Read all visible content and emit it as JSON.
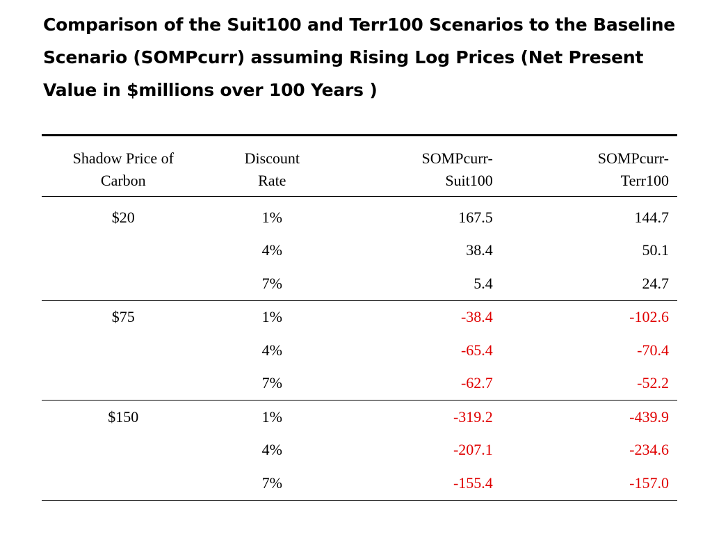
{
  "title": "Comparison of the Suit100 and Terr100 Scenarios to the Baseline Scenario (SOMPcurr) assuming Rising Log Prices (Net Present Value in $millions over 100 Years )",
  "colors": {
    "negative": "#e00000",
    "positive": "#000000"
  },
  "table": {
    "headers": {
      "price_line1": "Shadow Price of",
      "price_line2": "Carbon",
      "rate_line1": "Discount",
      "rate_line2": "Rate",
      "suit_line1": "SOMPcurr-",
      "suit_line2": "Suit100",
      "terr_line1": "SOMPcurr-",
      "terr_line2": "Terr100"
    },
    "groups": [
      {
        "price": "$20",
        "rows": [
          {
            "rate": "1%",
            "suit": "167.5",
            "terr": "144.7"
          },
          {
            "rate": "4%",
            "suit": "38.4",
            "terr": "50.1"
          },
          {
            "rate": "7%",
            "suit": "5.4",
            "terr": "24.7"
          }
        ]
      },
      {
        "price": "$75",
        "rows": [
          {
            "rate": "1%",
            "suit": "-38.4",
            "terr": "-102.6"
          },
          {
            "rate": "4%",
            "suit": "-65.4",
            "terr": "-70.4"
          },
          {
            "rate": "7%",
            "suit": "-62.7",
            "terr": "-52.2"
          }
        ]
      },
      {
        "price": "$150",
        "rows": [
          {
            "rate": "1%",
            "suit": "-319.2",
            "terr": "-439.9"
          },
          {
            "rate": "4%",
            "suit": "-207.1",
            "terr": "-234.6"
          },
          {
            "rate": "7%",
            "suit": "-155.4",
            "terr": "-157.0"
          }
        ]
      }
    ]
  }
}
